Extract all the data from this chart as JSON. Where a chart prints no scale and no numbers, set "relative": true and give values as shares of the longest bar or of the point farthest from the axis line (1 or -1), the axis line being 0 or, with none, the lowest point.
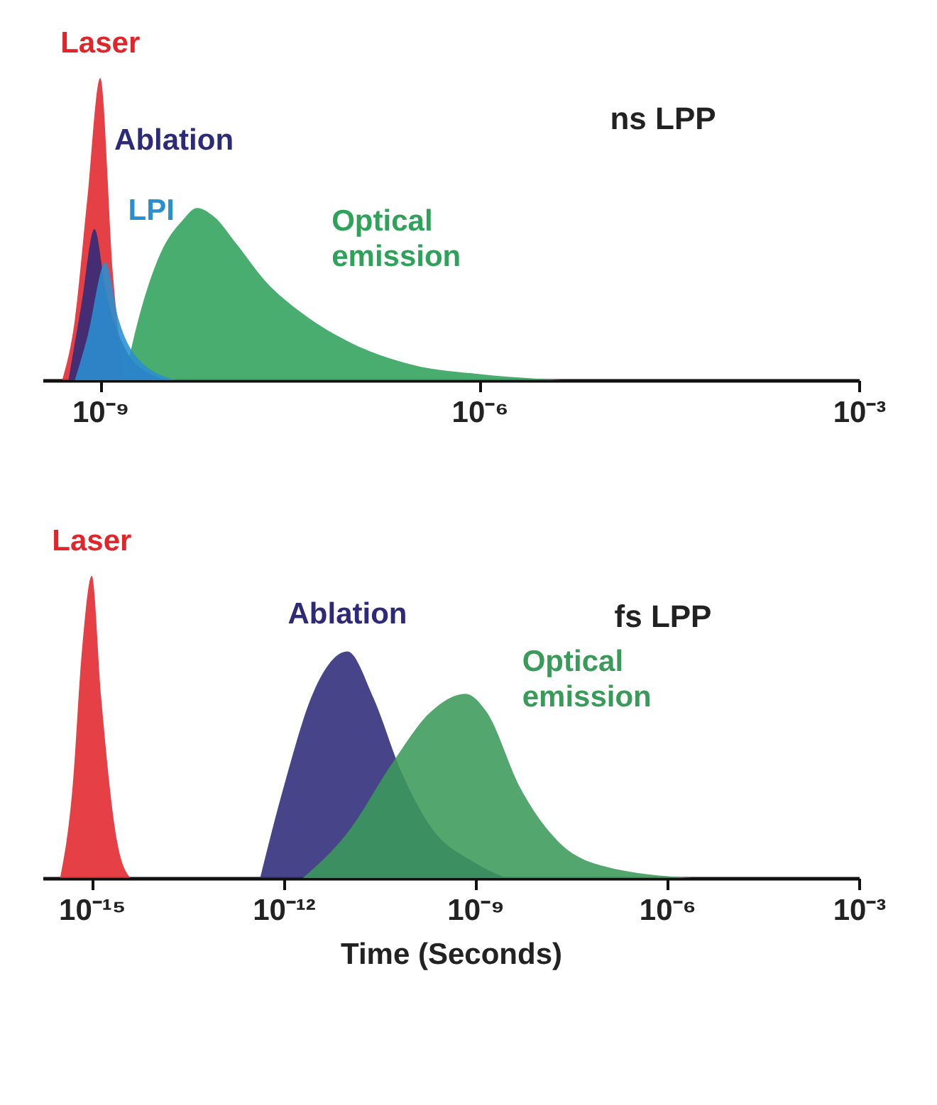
{
  "chart_data": [
    {
      "type": "area",
      "title": "ns LPP",
      "relative": true,
      "log": "x",
      "tick_labels": "x",
      "xlim": [
        3.5e-10,
        0.001
      ],
      "xticks": [
        {
          "value": 1e-09,
          "label": "10⁻⁹"
        },
        {
          "value": 1e-06,
          "label": "10⁻⁶"
        },
        {
          "value": 0.001,
          "label": "10⁻³"
        }
      ],
      "series": [
        {
          "name": "Optical emission",
          "color": "#2fa25a",
          "x": [
            1.55e-09,
            2e-09,
            3e-09,
            4.5e-09,
            5.8e-09,
            8e-09,
            1.2e-08,
            2e-08,
            4e-08,
            1e-07,
            3e-07,
            1e-06,
            4.5e-06
          ],
          "values": [
            0,
            0.2,
            0.42,
            0.53,
            0.57,
            0.54,
            0.45,
            0.33,
            0.22,
            0.12,
            0.05,
            0.02,
            0
          ]
        },
        {
          "name": "Laser",
          "color": "#e0262b",
          "x": [
            5e-10,
            6.3e-10,
            7.9e-10,
            1e-09,
            1.26e-09,
            1.55e-09
          ],
          "values": [
            0,
            0.2,
            0.6,
            1,
            0.35,
            0
          ]
        },
        {
          "name": "Ablation",
          "color": "#2e2a7a",
          "x": [
            5.6e-10,
            7.1e-10,
            9e-10,
            1.1e-09,
            1.6e-09,
            2.5e-09,
            3.5e-09
          ],
          "values": [
            0,
            0.25,
            0.5,
            0.3,
            0.1,
            0.02,
            0
          ]
        },
        {
          "name": "LPI",
          "color": "#2a8fd0",
          "x": [
            6.3e-10,
            8e-10,
            1.1e-09,
            1.4e-09,
            2e-09,
            4e-09
          ],
          "values": [
            0,
            0.15,
            0.39,
            0.2,
            0.07,
            0
          ]
        }
      ]
    },
    {
      "type": "area",
      "title": "fs LPP",
      "xlabel": "Time (Seconds)",
      "relative": true,
      "log": "x",
      "tick_labels": "x",
      "xlim": [
        1.7e-16,
        0.001
      ],
      "xticks": [
        {
          "value": 1e-15,
          "label": "10⁻¹⁵"
        },
        {
          "value": 1e-12,
          "label": "10⁻¹²"
        },
        {
          "value": 1e-09,
          "label": "10⁻⁹"
        },
        {
          "value": 1e-06,
          "label": "10⁻⁶"
        },
        {
          "value": 0.001,
          "label": "10⁻³"
        }
      ],
      "series": [
        {
          "name": "Laser",
          "color": "#e0262b",
          "x": [
            3.2e-16,
            5e-16,
            7e-16,
            1e-15,
            1.4e-15,
            2.5e-15,
            4e-15
          ],
          "values": [
            0,
            0.3,
            0.75,
            1,
            0.6,
            0.12,
            0
          ]
        },
        {
          "name": "Ablation",
          "color": "#2e2a7a",
          "x": [
            4.3e-13,
            1e-12,
            3e-12,
            1e-11,
            2.5e-11,
            7e-11,
            2e-10,
            1e-09,
            3e-09
          ],
          "values": [
            0,
            0.3,
            0.62,
            0.75,
            0.6,
            0.35,
            0.17,
            0.05,
            0
          ]
        },
        {
          "name": "Optical emission",
          "color": "#3a9a5a",
          "x": [
            2e-12,
            1e-11,
            5e-11,
            2e-10,
            7e-10,
            1.5e-09,
            5e-09,
            2e-08,
            1e-07,
            2.5e-06
          ],
          "values": [
            0,
            0.15,
            0.38,
            0.55,
            0.61,
            0.55,
            0.3,
            0.12,
            0.04,
            0
          ]
        }
      ]
    }
  ]
}
